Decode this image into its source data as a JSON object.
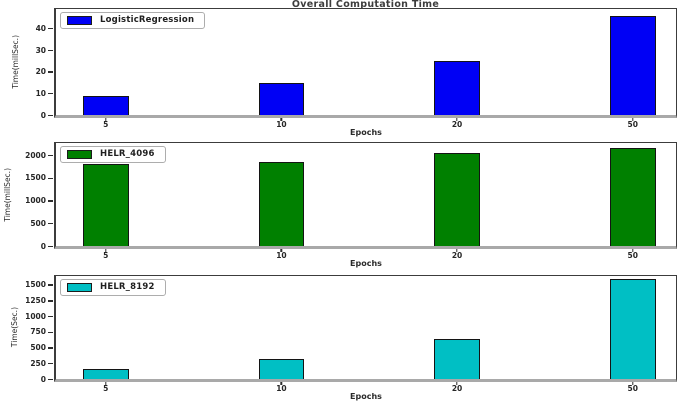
{
  "figure_title": "Overall Computation Time",
  "chart_data": [
    {
      "type": "bar",
      "title": "Overall Computation Time",
      "legend": "LogisticRegression",
      "color": "#0000f5",
      "categories": [
        "5",
        "10",
        "20",
        "50"
      ],
      "values": [
        9,
        15,
        25,
        46
      ],
      "xlabel": "Epochs",
      "ylabel": "Time(millSec.)",
      "yticks": [
        0,
        10,
        20,
        30,
        40
      ],
      "ylim": [
        0,
        49
      ],
      "legend_position": "upper-left",
      "grid": false
    },
    {
      "type": "bar",
      "legend": "HELR_4096",
      "color": "#008000",
      "categories": [
        "5",
        "10",
        "20",
        "50"
      ],
      "values": [
        1800,
        1850,
        2040,
        2170
      ],
      "xlabel": "Epochs",
      "ylabel": "Time(millSec.)",
      "yticks": [
        0,
        500,
        1000,
        1500,
        2000
      ],
      "ylim": [
        0,
        2270
      ],
      "legend_position": "upper-left",
      "grid": false
    },
    {
      "type": "bar",
      "legend": "HELR_8192",
      "color": "#00bfc4",
      "categories": [
        "5",
        "10",
        "20",
        "50"
      ],
      "values": [
        160,
        325,
        630,
        1590
      ],
      "xlabel": "Epochs",
      "ylabel": "Time(Sec.)",
      "yticks": [
        0,
        250,
        500,
        750,
        1000,
        1250,
        1500
      ],
      "ylim": [
        0,
        1640
      ],
      "legend_position": "upper-left",
      "grid": false
    }
  ]
}
